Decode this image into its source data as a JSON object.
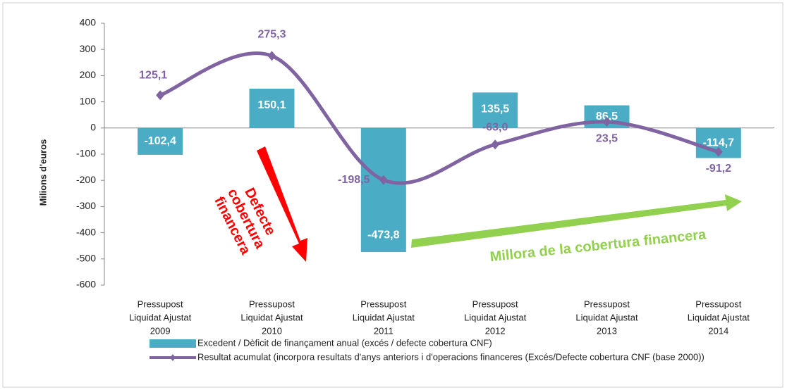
{
  "chart_data": {
    "type": "bar-line",
    "y_axis_label": "Milions d'euros",
    "categories": [
      [
        "Pressupost",
        "Liquidat Ajustat",
        "2009"
      ],
      [
        "Pressupost",
        "Liquidat Ajustat",
        "2010"
      ],
      [
        "Pressupost",
        "Liquidat Ajustat",
        "2011"
      ],
      [
        "Pressupost",
        "Liquidat Ajustat",
        "2012"
      ],
      [
        "Pressupost",
        "Liquidat Ajustat",
        "2013"
      ],
      [
        "Pressupost",
        "Liquidat Ajustat",
        "2014"
      ]
    ],
    "series": [
      {
        "name": "Excedent / Dèficit de finançament anual (excés / defecte cobertura CNF)",
        "type": "bar",
        "color": "#4bacc6",
        "values": [
          -102.4,
          150.1,
          -473.8,
          135.5,
          86.5,
          -114.7
        ],
        "value_labels": [
          "-102,4",
          "150,1",
          "-473,8",
          "135,5",
          "86,5",
          "-114,7"
        ]
      },
      {
        "name": "Resultat acumulat (incorpora resultats d'anys anteriors i d'operacions financeres (Excés/Defecte cobertura CNF (base 2000))",
        "type": "line",
        "color": "#8064a2",
        "values": [
          125.1,
          275.3,
          -198.5,
          -63.0,
          23.5,
          -91.2
        ],
        "value_labels": [
          "125,1",
          "275,3",
          "-198,5",
          "-63,0",
          "23,5",
          "-91,2"
        ]
      }
    ],
    "ylim": [
      -600,
      400
    ],
    "yticks": [
      -600,
      -500,
      -400,
      -300,
      -200,
      -100,
      0,
      100,
      200,
      300,
      400
    ],
    "annotations": [
      {
        "text": [
          "Defecte",
          "cobertura",
          "financera"
        ],
        "color": "#ff0000"
      },
      {
        "text": "Millora de la cobertura financera",
        "color": "#92d050"
      }
    ]
  }
}
